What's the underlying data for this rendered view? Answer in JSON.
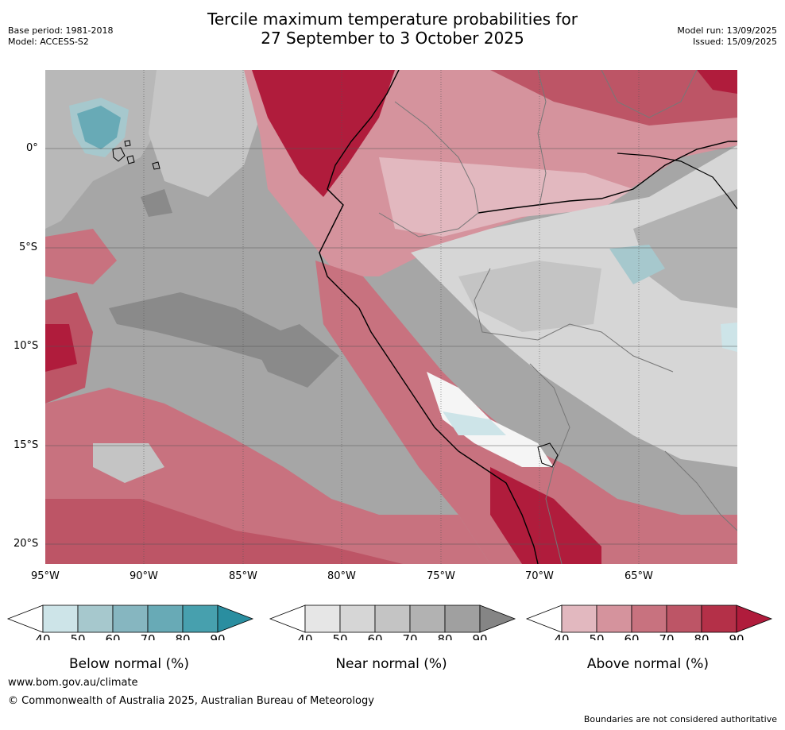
{
  "title_line1": "Tercile maximum temperature probabilities for",
  "title_line2": "27 September to 3 October 2025",
  "meta": {
    "base_period": "Base period: 1981-2018",
    "model": "Model: ACCESS-S2",
    "model_run": "Model run: 13/09/2025",
    "issued": "Issued: 15/09/2025"
  },
  "map": {
    "lon_ticks": [
      "95°W",
      "90°W",
      "85°W",
      "80°W",
      "75°W",
      "70°W",
      "65°W"
    ],
    "lat_ticks": [
      "0°",
      "5°S",
      "10°S",
      "15°S",
      "20°S"
    ],
    "lon_range": [
      -95,
      -60
    ],
    "lat_range": [
      -21,
      4
    ]
  },
  "colorbars": [
    {
      "label": "Below normal (%)",
      "ticks": [
        "40",
        "50",
        "60",
        "70",
        "80",
        "90"
      ],
      "colors": [
        "#cde4e8",
        "#a6c8cd",
        "#86b6c0",
        "#68aab6",
        "#47a0ae",
        "#2a8ea0"
      ]
    },
    {
      "label": "Near normal (%)",
      "ticks": [
        "40",
        "50",
        "60",
        "70",
        "80",
        "90"
      ],
      "colors": [
        "#e6e6e6",
        "#d6d6d6",
        "#c4c4c4",
        "#b2b2b2",
        "#a0a0a0",
        "#858585"
      ]
    },
    {
      "label": "Above normal (%)",
      "ticks": [
        "40",
        "50",
        "60",
        "70",
        "80",
        "90"
      ],
      "colors": [
        "#e2b8bf",
        "#d5939d",
        "#c8727f",
        "#bd5566",
        "#b43048",
        "#b01c3c"
      ]
    }
  ],
  "footer": {
    "url": "www.bom.gov.au/climate",
    "copyright": "© Commonwealth of Australia 2025, Australian Bureau of Meteorology",
    "note": "Boundaries are not considered authoritative"
  }
}
